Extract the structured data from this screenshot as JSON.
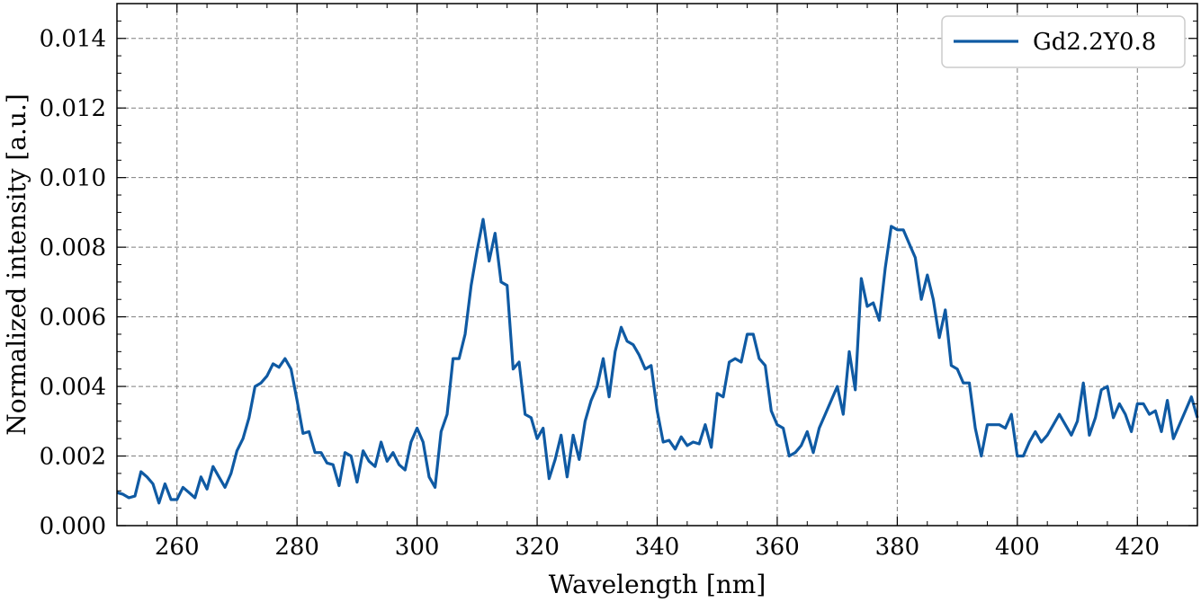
{
  "chart_data": {
    "type": "line",
    "xlabel": "Wavelength [nm]",
    "ylabel": "Normalized intensity [a.u.]",
    "xlim": [
      250,
      430
    ],
    "ylim": [
      0,
      0.015
    ],
    "xticks": [
      260,
      280,
      300,
      320,
      340,
      360,
      380,
      400,
      420
    ],
    "xtick_labels": [
      "260",
      "280",
      "300",
      "320",
      "340",
      "360",
      "380",
      "400",
      "420"
    ],
    "yticks": [
      0,
      0.002,
      0.004,
      0.006,
      0.008,
      0.01,
      0.012,
      0.014
    ],
    "ytick_labels": [
      "0.000",
      "0.002",
      "0.004",
      "0.006",
      "0.008",
      "0.010",
      "0.012",
      "0.014"
    ],
    "grid": true,
    "legend_position": "top-right",
    "series": [
      {
        "name": "Gd2.2Y0.8",
        "color": "#0f5aa3",
        "x": [
          250,
          251,
          252,
          253,
          254,
          255,
          256,
          257,
          258,
          259,
          260,
          261,
          262,
          263,
          264,
          265,
          266,
          267,
          268,
          269,
          270,
          271,
          272,
          273,
          274,
          275,
          276,
          277,
          278,
          279,
          280,
          281,
          282,
          283,
          284,
          285,
          286,
          287,
          288,
          289,
          290,
          291,
          292,
          293,
          294,
          295,
          296,
          297,
          298,
          299,
          300,
          301,
          302,
          303,
          304,
          305,
          306,
          307,
          308,
          309,
          310,
          311,
          312,
          313,
          314,
          315,
          316,
          317,
          318,
          319,
          320,
          321,
          322,
          323,
          324,
          325,
          326,
          327,
          328,
          329,
          330,
          331,
          332,
          333,
          334,
          335,
          336,
          337,
          338,
          339,
          340,
          341,
          342,
          343,
          344,
          345,
          346,
          347,
          348,
          349,
          350,
          351,
          352,
          353,
          354,
          355,
          356,
          357,
          358,
          359,
          360,
          361,
          362,
          363,
          364,
          365,
          366,
          367,
          368,
          369,
          370,
          371,
          372,
          373,
          374,
          375,
          376,
          377,
          378,
          379,
          380,
          381,
          382,
          383,
          384,
          385,
          386,
          387,
          388,
          389,
          390,
          391,
          392,
          393,
          394,
          395,
          396,
          397,
          398,
          399,
          400,
          401,
          402,
          403,
          404,
          405,
          406,
          407,
          408,
          409,
          410,
          411,
          412,
          413,
          414,
          415,
          416,
          417,
          418,
          419,
          420,
          421,
          422,
          423,
          424,
          425,
          426,
          427,
          428,
          429,
          430
        ],
        "y": [
          0.00095,
          0.0009,
          0.0008,
          0.00085,
          0.00155,
          0.0014,
          0.0012,
          0.00065,
          0.0012,
          0.00075,
          0.00075,
          0.0011,
          0.00095,
          0.0008,
          0.0014,
          0.00105,
          0.0017,
          0.0014,
          0.0011,
          0.0015,
          0.00215,
          0.0025,
          0.0031,
          0.004,
          0.0041,
          0.0043,
          0.00465,
          0.00455,
          0.0048,
          0.0045,
          0.0036,
          0.00265,
          0.0027,
          0.0021,
          0.0021,
          0.0018,
          0.00175,
          0.00115,
          0.0021,
          0.002,
          0.00125,
          0.00215,
          0.00185,
          0.0017,
          0.0024,
          0.00185,
          0.0021,
          0.00175,
          0.0016,
          0.0024,
          0.0028,
          0.0024,
          0.0014,
          0.0011,
          0.0027,
          0.0032,
          0.0048,
          0.0048,
          0.0055,
          0.0069,
          0.0079,
          0.0088,
          0.0076,
          0.0084,
          0.007,
          0.0069,
          0.0045,
          0.0047,
          0.0032,
          0.0031,
          0.0025,
          0.0028,
          0.00135,
          0.0019,
          0.0026,
          0.0014,
          0.0026,
          0.0019,
          0.003,
          0.0036,
          0.004,
          0.0048,
          0.0037,
          0.005,
          0.0057,
          0.0053,
          0.0052,
          0.0049,
          0.0045,
          0.0046,
          0.0033,
          0.0024,
          0.00245,
          0.0022,
          0.00255,
          0.0023,
          0.0024,
          0.00235,
          0.0029,
          0.00225,
          0.0038,
          0.0037,
          0.0047,
          0.0048,
          0.0047,
          0.0055,
          0.0055,
          0.0048,
          0.0046,
          0.0033,
          0.0029,
          0.0028,
          0.002,
          0.0021,
          0.0023,
          0.0027,
          0.0021,
          0.0028,
          0.0032,
          0.0036,
          0.004,
          0.0032,
          0.005,
          0.0039,
          0.0071,
          0.0063,
          0.0064,
          0.0059,
          0.0074,
          0.0086,
          0.0085,
          0.0085,
          0.0081,
          0.0077,
          0.0065,
          0.0072,
          0.0065,
          0.0054,
          0.0062,
          0.0046,
          0.0045,
          0.0041,
          0.0041,
          0.0028,
          0.002,
          0.0029,
          0.0029,
          0.0029,
          0.0028,
          0.0032,
          0.002,
          0.002,
          0.0024,
          0.0027,
          0.0024,
          0.0026,
          0.0029,
          0.0032,
          0.0029,
          0.0026,
          0.003,
          0.0041,
          0.0026,
          0.0031,
          0.0039,
          0.004,
          0.0031,
          0.0035,
          0.0032,
          0.0027,
          0.0035,
          0.0035,
          0.0032,
          0.0033,
          0.0027,
          0.0036,
          0.0025,
          0.0029,
          0.0033,
          0.0037,
          0.0031
        ]
      }
    ]
  }
}
